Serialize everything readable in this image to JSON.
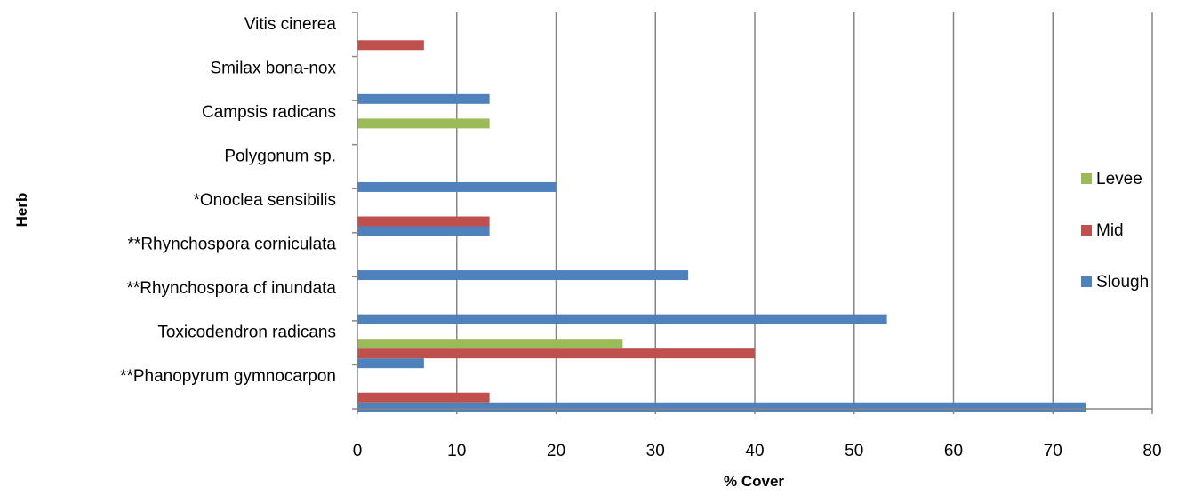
{
  "chart_data": {
    "type": "bar",
    "orientation": "horizontal",
    "title": "",
    "xlabel": "% Cover",
    "ylabel": "Herb",
    "xlim": [
      0,
      80
    ],
    "xticks": [
      0,
      10,
      20,
      30,
      40,
      50,
      60,
      70,
      80
    ],
    "grid": "vertical",
    "legend_position": "right",
    "categories": [
      "**Phanopyrum gymnocarpon",
      "Toxicodendron radicans",
      "**Rhynchospora cf inundata",
      "**Rhynchospora corniculata",
      "*Onoclea sensibilis",
      "Polygonum sp.",
      "Campsis radicans",
      "Smilax bona-nox",
      "Vitis cinerea"
    ],
    "series": [
      {
        "name": "Slough",
        "color": "#4F81BD",
        "values": [
          73.3,
          6.7,
          53.3,
          33.3,
          13.3,
          20,
          0,
          13.3,
          0
        ]
      },
      {
        "name": "Mid",
        "color": "#C0504D",
        "values": [
          13.3,
          40,
          0,
          0,
          13.3,
          0,
          0,
          0,
          6.7
        ]
      },
      {
        "name": "Levee",
        "color": "#9BBB59",
        "values": [
          0,
          26.7,
          0,
          0,
          0,
          0,
          13.3,
          0,
          0
        ]
      }
    ],
    "legend_order": [
      "Levee",
      "Mid",
      "Slough"
    ]
  }
}
